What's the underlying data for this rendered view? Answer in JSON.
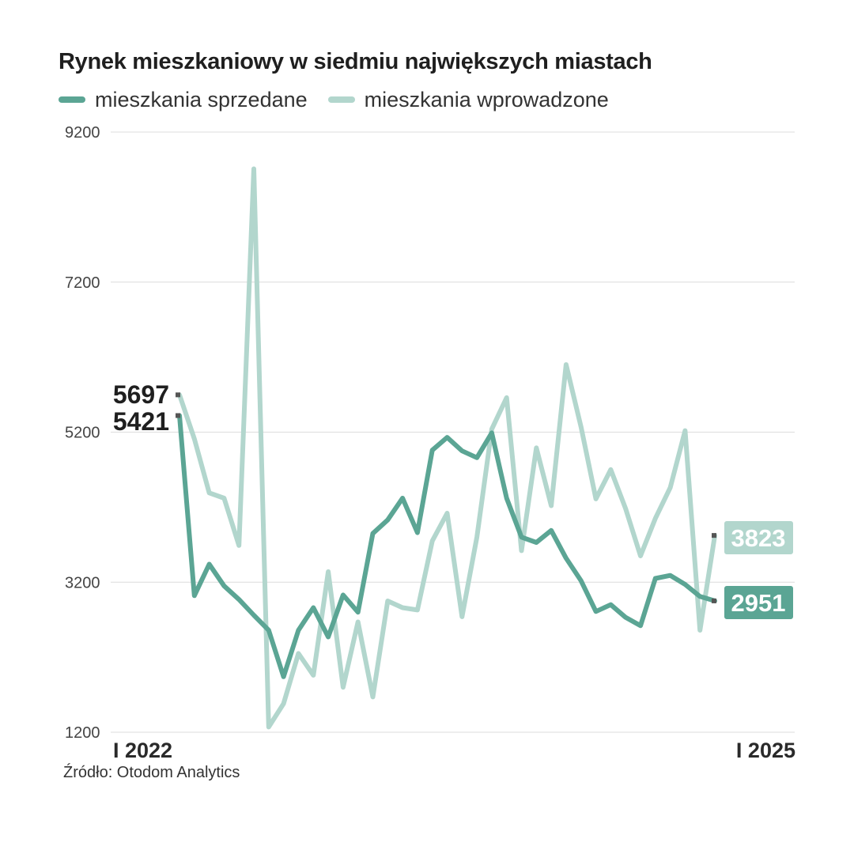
{
  "chart_data": {
    "type": "line",
    "title": "Rynek mieszkaniowy w siedmiu największych miastach",
    "xlabel": "",
    "ylabel": "",
    "x_tick_labels": [
      "I 2022",
      "I 2025"
    ],
    "yticks": [
      1200,
      3200,
      5200,
      7200,
      9200
    ],
    "ylim": [
      1200,
      9200
    ],
    "colors": {
      "sold": "#5ba594",
      "introduced": "#b2d6cd"
    },
    "series": [
      {
        "key": "sold",
        "name": "mieszkania sprzedane",
        "values": [
          5421,
          3020,
          3440,
          3150,
          2970,
          2760,
          2560,
          1940,
          2560,
          2860,
          2470,
          3030,
          2800,
          3850,
          4030,
          4320,
          3860,
          4960,
          5130,
          4950,
          4860,
          5190,
          4320,
          3800,
          3730,
          3890,
          3520,
          3220,
          2810,
          2900,
          2730,
          2620,
          3250,
          3290,
          3170,
          3010,
          2951
        ],
        "start_label": "5421",
        "end_label": "2951"
      },
      {
        "key": "introduced",
        "name": "mieszkania wprowadzone",
        "values": [
          5697,
          5110,
          4390,
          4320,
          3690,
          8710,
          1270,
          1580,
          2250,
          1960,
          3340,
          1800,
          2670,
          1670,
          2950,
          2860,
          2830,
          3750,
          4120,
          2740,
          3800,
          5240,
          5660,
          3620,
          4990,
          4220,
          6100,
          5270,
          4310,
          4700,
          4180,
          3550,
          4050,
          4460,
          5220,
          2560,
          3823
        ],
        "start_label": "5697",
        "end_label": "3823"
      }
    ]
  },
  "legend": [
    {
      "key": "sold",
      "label": "mieszkania sprzedane"
    },
    {
      "key": "introduced",
      "label": "mieszkania wprowadzone"
    }
  ],
  "source": "Źródło: Otodom Analytics"
}
